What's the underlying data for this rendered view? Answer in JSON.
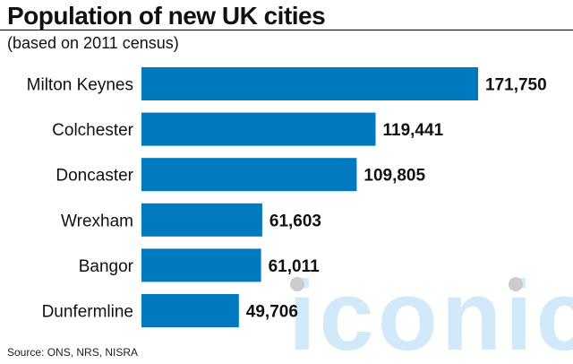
{
  "title": "Population of new UK cities",
  "subtitle": "(based on 2011 census)",
  "source": "Source: ONS, NRS, NISRA",
  "watermark": "iconic",
  "colors": {
    "bar": "#0079be",
    "text": "#111111",
    "watermark": "#c9e6f7"
  },
  "chart_data": {
    "type": "bar",
    "orientation": "horizontal",
    "categories": [
      "Milton Keynes",
      "Colchester",
      "Doncaster",
      "Wrexham",
      "Bangor",
      "Dunfermline"
    ],
    "values": [
      171750,
      119441,
      109805,
      61603,
      61011,
      49706
    ],
    "data_labels": [
      "171,750",
      "119,441",
      "109,805",
      "61,603",
      "61,011",
      "49,706"
    ],
    "title": "Population of new UK cities",
    "subtitle": "(based on 2011 census)",
    "xlabel": "",
    "ylabel": "",
    "xlim": [
      0,
      171750
    ],
    "grid": false,
    "legend": "none"
  }
}
